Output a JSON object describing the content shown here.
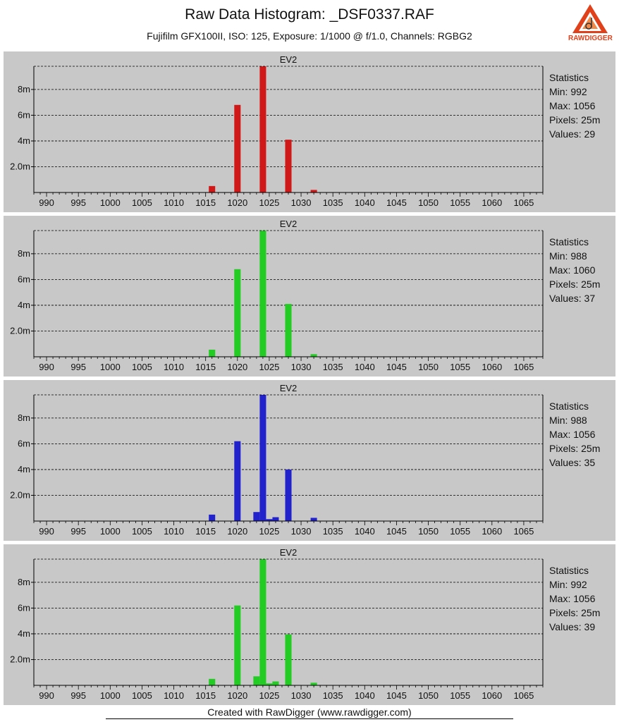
{
  "title": "Raw Data Histogram: _DSF0337.RAF",
  "subtitle": "Fujifilm GFX100II, ISO: 125, Exposure: 1/1000 @ f/1.0, Channels: RGBG2",
  "logo": {
    "text_raw": "RAW",
    "text_digger": "DIGGER",
    "color": "#e0401a"
  },
  "footer": "Created with RawDigger (www.rawdigger.com)",
  "colors": {
    "panel_bg": "#c8c8c8",
    "grid": "#000000"
  },
  "chart_data": [
    {
      "type": "bar",
      "title": "EV2",
      "color": "#d01818",
      "xlim": [
        988,
        1068
      ],
      "ylim": [
        0,
        9.8
      ],
      "x_ticks": [
        990,
        995,
        1000,
        1005,
        1010,
        1015,
        1020,
        1025,
        1030,
        1035,
        1040,
        1045,
        1050,
        1055,
        1060,
        1065
      ],
      "y_ticks": [
        {
          "value": 2,
          "label": "2.0m"
        },
        {
          "value": 4,
          "label": "4m"
        },
        {
          "value": 6,
          "label": "6m"
        },
        {
          "value": 8,
          "label": "8m"
        }
      ],
      "grid": true,
      "points": [
        {
          "x": 1016,
          "y": 0.5
        },
        {
          "x": 1020,
          "y": 6.8
        },
        {
          "x": 1024,
          "y": 9.8
        },
        {
          "x": 1028,
          "y": 4.1
        },
        {
          "x": 1032,
          "y": 0.2
        }
      ],
      "stats": {
        "heading": "Statistics",
        "min": "Min: 992",
        "max": "Max: 1056",
        "pixels": "Pixels: 25m",
        "values": "Values: 29"
      }
    },
    {
      "type": "bar",
      "title": "EV2",
      "color": "#22cc22",
      "xlim": [
        988,
        1068
      ],
      "ylim": [
        0,
        9.8
      ],
      "x_ticks": [
        990,
        995,
        1000,
        1005,
        1010,
        1015,
        1020,
        1025,
        1030,
        1035,
        1040,
        1045,
        1050,
        1055,
        1060,
        1065
      ],
      "y_ticks": [
        {
          "value": 2,
          "label": "2.0m"
        },
        {
          "value": 4,
          "label": "4m"
        },
        {
          "value": 6,
          "label": "6m"
        },
        {
          "value": 8,
          "label": "8m"
        }
      ],
      "grid": true,
      "points": [
        {
          "x": 1016,
          "y": 0.55
        },
        {
          "x": 1020,
          "y": 6.8
        },
        {
          "x": 1024,
          "y": 9.8
        },
        {
          "x": 1028,
          "y": 4.1
        },
        {
          "x": 1032,
          "y": 0.2
        }
      ],
      "stats": {
        "heading": "Statistics",
        "min": "Min: 988",
        "max": "Max: 1060",
        "pixels": "Pixels: 25m",
        "values": "Values: 37"
      }
    },
    {
      "type": "bar",
      "title": "EV2",
      "color": "#2222cc",
      "xlim": [
        988,
        1068
      ],
      "ylim": [
        0,
        9.8
      ],
      "x_ticks": [
        990,
        995,
        1000,
        1005,
        1010,
        1015,
        1020,
        1025,
        1030,
        1035,
        1040,
        1045,
        1050,
        1055,
        1060,
        1065
      ],
      "y_ticks": [
        {
          "value": 2,
          "label": "2.0m"
        },
        {
          "value": 4,
          "label": "4m"
        },
        {
          "value": 6,
          "label": "6m"
        },
        {
          "value": 8,
          "label": "8m"
        }
      ],
      "grid": true,
      "points": [
        {
          "x": 1016,
          "y": 0.5
        },
        {
          "x": 1020,
          "y": 6.2
        },
        {
          "x": 1023,
          "y": 0.7
        },
        {
          "x": 1024,
          "y": 9.8
        },
        {
          "x": 1025,
          "y": 0.15
        },
        {
          "x": 1026,
          "y": 0.3
        },
        {
          "x": 1028,
          "y": 4.0
        },
        {
          "x": 1032,
          "y": 0.25
        }
      ],
      "stats": {
        "heading": "Statistics",
        "min": "Min: 988",
        "max": "Max: 1056",
        "pixels": "Pixels: 25m",
        "values": "Values: 35"
      }
    },
    {
      "type": "bar",
      "title": "EV2",
      "color": "#22cc22",
      "xlim": [
        988,
        1068
      ],
      "ylim": [
        0,
        9.8
      ],
      "x_ticks": [
        990,
        995,
        1000,
        1005,
        1010,
        1015,
        1020,
        1025,
        1030,
        1035,
        1040,
        1045,
        1050,
        1055,
        1060,
        1065
      ],
      "y_ticks": [
        {
          "value": 2,
          "label": "2.0m"
        },
        {
          "value": 4,
          "label": "4m"
        },
        {
          "value": 6,
          "label": "6m"
        },
        {
          "value": 8,
          "label": "8m"
        }
      ],
      "grid": true,
      "points": [
        {
          "x": 1016,
          "y": 0.5
        },
        {
          "x": 1020,
          "y": 6.2
        },
        {
          "x": 1023,
          "y": 0.7
        },
        {
          "x": 1024,
          "y": 9.8
        },
        {
          "x": 1025,
          "y": 0.15
        },
        {
          "x": 1026,
          "y": 0.3
        },
        {
          "x": 1028,
          "y": 3.95
        },
        {
          "x": 1032,
          "y": 0.2
        }
      ],
      "stats": {
        "heading": "Statistics",
        "min": "Min: 992",
        "max": "Max: 1056",
        "pixels": "Pixels: 25m",
        "values": "Values: 39"
      }
    }
  ]
}
